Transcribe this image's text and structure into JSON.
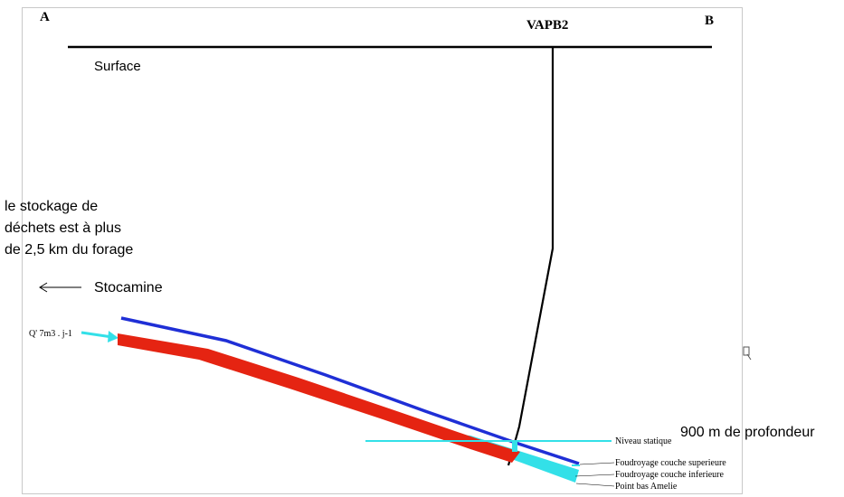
{
  "labels": {
    "point_a": "A",
    "point_b": "B",
    "well_name": "VAPB2",
    "surface": "Surface",
    "waste_note": [
      "le stockage de",
      "déchets est à plus",
      "de 2,5 km du forage"
    ],
    "stocamine": "Stocamine",
    "flow": "Q' 7m3 . j-1",
    "depth": "900 m de profondeur",
    "static_level": "Niveau statique",
    "upper_layer": "Foudroyage couche superieure",
    "lower_layer": "Foudroyage couche inferieure",
    "low_point": "Point bas Amelie"
  },
  "colors": {
    "upper_layer": "#1f2fd6",
    "lower_layer": "#e52412",
    "water": "#33e0e8",
    "well": "#000000",
    "frame": "#c8c8c8"
  },
  "icons": {
    "stocamine_arrow": "arrow-left-icon",
    "inflow_arrow": "arrow-right-icon"
  }
}
